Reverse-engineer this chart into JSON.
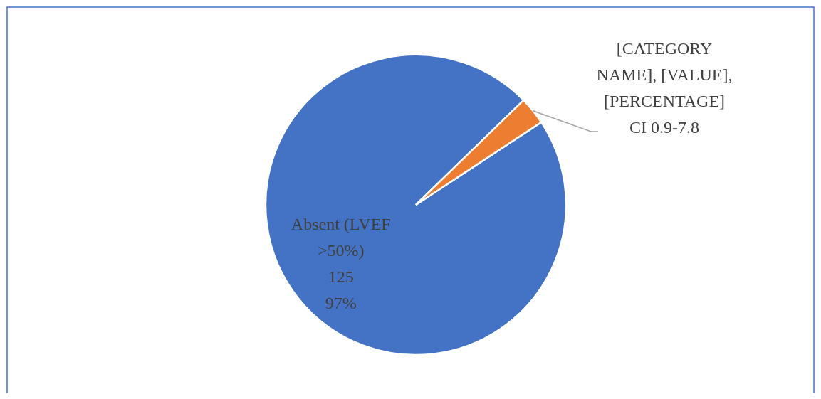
{
  "chart_data": {
    "type": "pie",
    "categories": [
      "Absent (LVEF >50%)",
      "[CATEGORY NAME]"
    ],
    "values": [
      97,
      3
    ],
    "colors": [
      "#4472c4",
      "#ed7d31"
    ],
    "value_labels": [
      "125\n97%",
      "[VALUE], [PERCENTAGE]\nCI 0.9-7.8"
    ],
    "legend": false
  }
}
